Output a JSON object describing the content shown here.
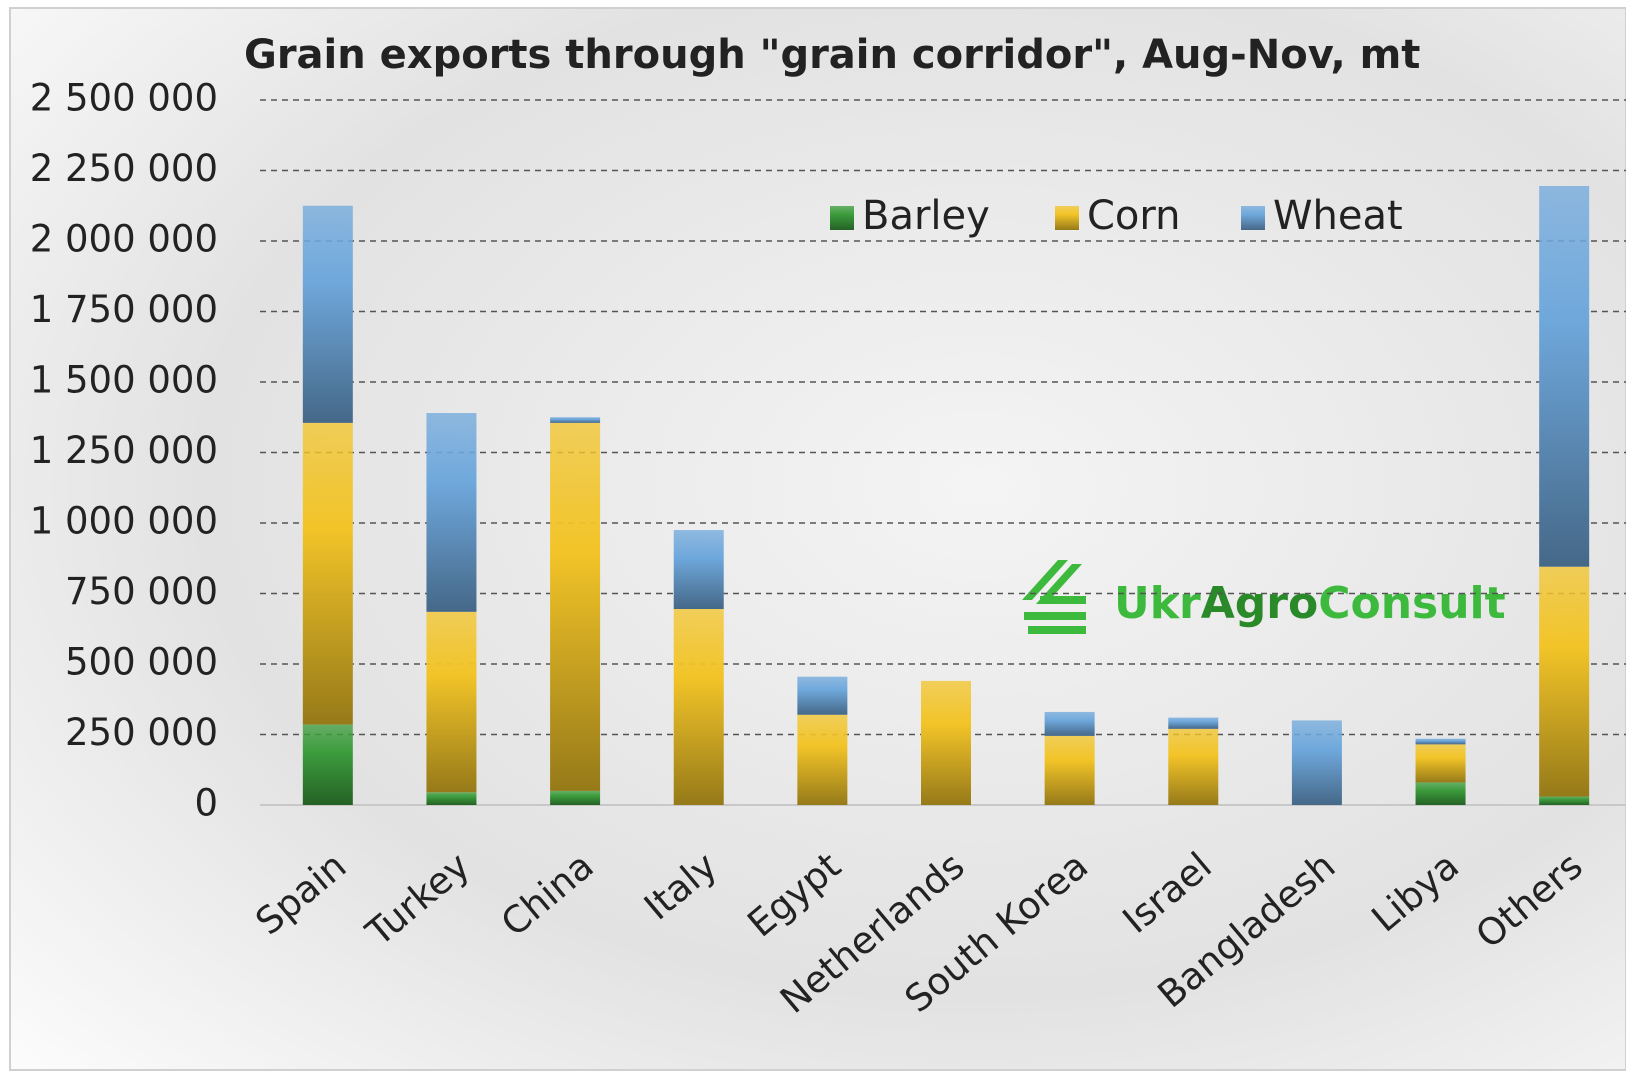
{
  "chart_data": {
    "type": "stacked_bar",
    "title": "Grain exports through \"grain corridor\", Aug-Nov, mt",
    "categories": [
      "Spain",
      "Turkey",
      "China",
      "Italy",
      "Egypt",
      "Netherlands",
      "South Korea",
      "Israel",
      "Bangladesh",
      "Libya",
      "Others"
    ],
    "series": [
      {
        "name": "Barley",
        "color": "#3c9c3c",
        "values": [
          285000,
          45000,
          50000,
          0,
          0,
          0,
          0,
          0,
          0,
          80000,
          30000
        ]
      },
      {
        "name": "Corn",
        "color": "#f2c428",
        "values": [
          1070000,
          640000,
          1305000,
          695000,
          320000,
          440000,
          245000,
          270000,
          0,
          135000,
          815000
        ]
      },
      {
        "name": "Wheat",
        "color": "#6fa8dc",
        "values": [
          770000,
          705000,
          20000,
          280000,
          135000,
          0,
          85000,
          40000,
          300000,
          20000,
          1350000
        ]
      }
    ],
    "ylim": [
      0,
      2500000
    ],
    "yticks": [
      0,
      {
        "value": 250000,
        "label": "250 000"
      },
      {
        "value": 500000,
        "label": "500 000"
      },
      {
        "value": 750000,
        "label": "750 000"
      },
      {
        "value": 1000000,
        "label": "1 000 000"
      },
      {
        "value": 1250000,
        "label": "1 250 000"
      },
      {
        "value": 1500000,
        "label": "1 500 000"
      },
      {
        "value": 1750000,
        "label": "1 750 000"
      },
      {
        "value": 2000000,
        "label": "2 000 000"
      },
      {
        "value": 2250000,
        "label": "2 250 000"
      },
      {
        "value": 2500000,
        "label": "2 500 000"
      }
    ],
    "grid": true,
    "legend": "top",
    "watermark": [
      "Ukr",
      "Agro",
      "Consult"
    ]
  }
}
